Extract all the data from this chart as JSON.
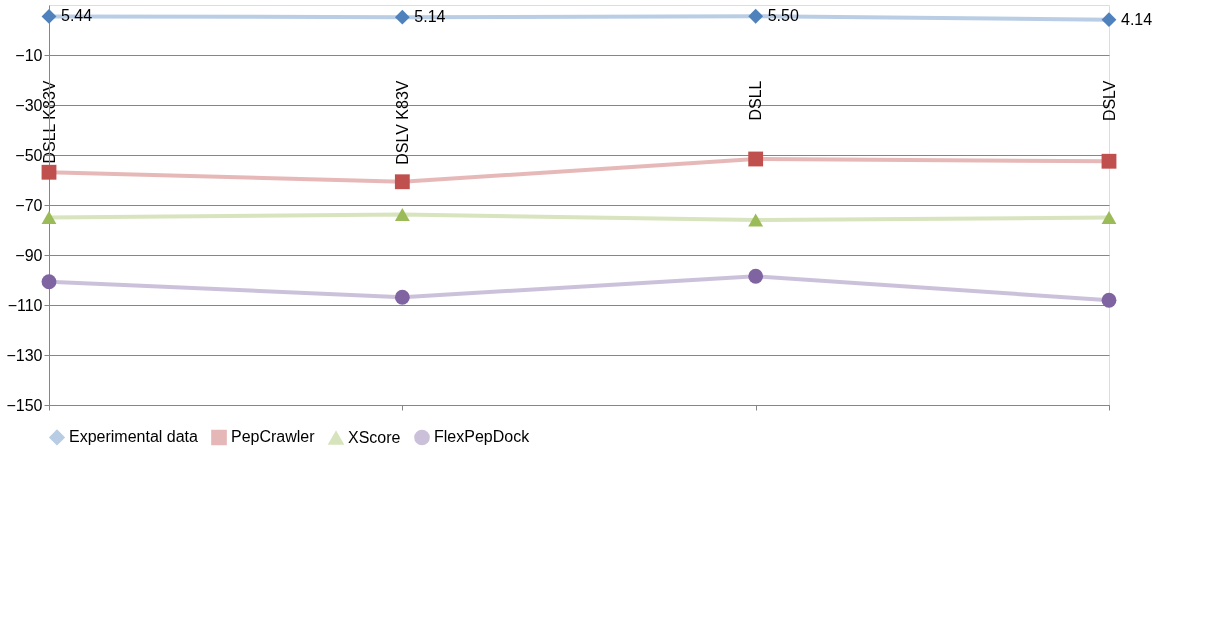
{
  "chart_data": {
    "type": "line",
    "categories": [
      "DSLL K83V",
      "DSLV K83V",
      "DSLL",
      "DSLV"
    ],
    "series": [
      {
        "name": "Experimental data",
        "color": "#4f81bd",
        "marker": "diamond",
        "values": [
          5.44,
          5.14,
          5.5,
          4.14
        ],
        "value_labels": [
          "5.44",
          "5.14",
          "5.50",
          "4.14"
        ]
      },
      {
        "name": "PepCrawler",
        "color": "#c0504d",
        "marker": "square",
        "values": [
          -56.9,
          -60.7,
          -51.6,
          -52.5
        ]
      },
      {
        "name": "XScore",
        "color": "#9bbb59",
        "marker": "triangle",
        "values": [
          -75.0,
          -73.8,
          -76.0,
          -75.0
        ]
      },
      {
        "name": "FlexPepDock",
        "color": "#8064a2",
        "marker": "circle",
        "values": [
          -100.7,
          -106.9,
          -98.5,
          -108.1
        ]
      }
    ],
    "ylim": [
      -150,
      10
    ],
    "yticks": [
      -150,
      -130,
      -110,
      -90,
      -70,
      -50,
      -30,
      -10
    ],
    "grid": "y",
    "legend": "bottom"
  }
}
